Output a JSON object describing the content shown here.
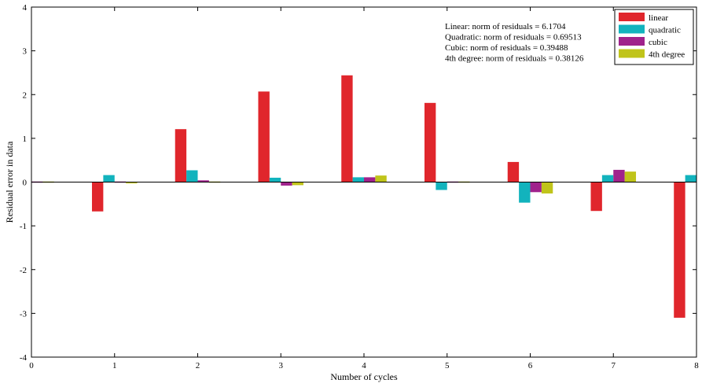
{
  "chart_data": {
    "type": "bar",
    "title": "",
    "xlabel": "Number of cycles",
    "ylabel": "Residual error in data",
    "xlim": [
      0,
      8
    ],
    "ylim": [
      -4,
      4
    ],
    "x_ticks": [
      0,
      1,
      2,
      3,
      4,
      5,
      6,
      7,
      8
    ],
    "y_ticks": [
      -4,
      -3,
      -2,
      -1,
      0,
      1,
      2,
      3,
      4
    ],
    "x_tick_labels": [
      "0",
      "1",
      "2",
      "3",
      "4",
      "5",
      "6",
      "7",
      "8"
    ],
    "y_tick_labels": [
      "-4",
      "-3",
      "-2",
      "-1",
      "0",
      "1",
      "2",
      "3",
      "4"
    ],
    "x": [
      0,
      1,
      2,
      3,
      4,
      5,
      6,
      7,
      8
    ],
    "grid": false,
    "legend_position": "top-right",
    "series": [
      {
        "name": "linear",
        "color": "#e0262c",
        "values": [
          0,
          -0.67,
          1.21,
          2.07,
          2.44,
          1.81,
          0.46,
          -0.66,
          -3.1
        ]
      },
      {
        "name": "quadratic",
        "color": "#12b3bd",
        "values": [
          0,
          0.16,
          0.27,
          0.1,
          0.11,
          -0.18,
          -0.47,
          0.16,
          0.16
        ]
      },
      {
        "name": "cubic",
        "color": "#a0228c",
        "values": [
          -0.02,
          0.02,
          0.04,
          -0.08,
          0.11,
          -0.02,
          -0.23,
          0.28,
          0
        ]
      },
      {
        "name": "4th degree",
        "color": "#c0c41a",
        "values": [
          0.02,
          -0.03,
          -0.02,
          -0.07,
          0.15,
          0.01,
          -0.26,
          0.24,
          0
        ]
      }
    ],
    "annotations": [
      "Linear: norm of residuals = 6.1704",
      "Quadratic: norm of residuals = 0.69513",
      "Cubic: norm of residuals = 0.39488",
      "4th degree: norm of residuals = 0.38126"
    ]
  }
}
